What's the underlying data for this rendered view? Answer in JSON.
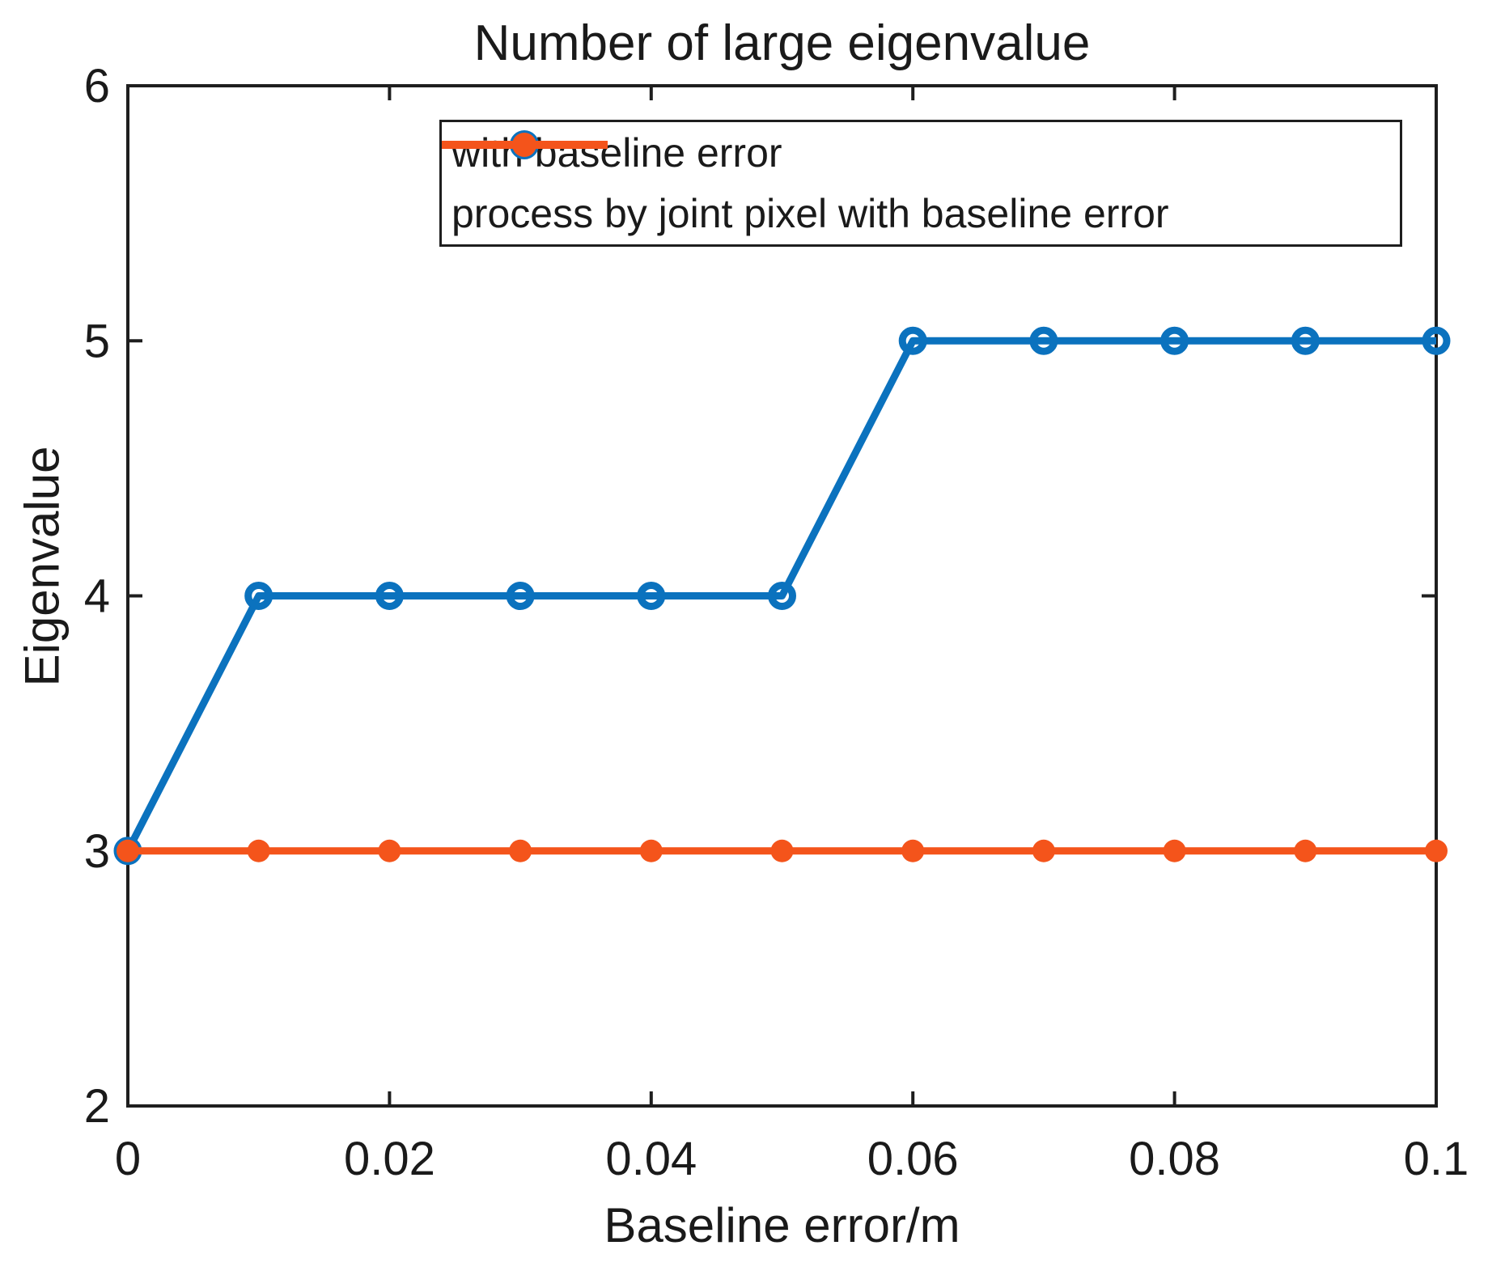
{
  "chart_data": {
    "type": "line",
    "title": "Number of large eigenvalue",
    "xlabel": "Baseline error/m",
    "ylabel": "Eigenvalue",
    "xlim": [
      0,
      0.1
    ],
    "ylim": [
      2,
      6
    ],
    "xticks": [
      0,
      0.02,
      0.04,
      0.06,
      0.08,
      0.1
    ],
    "xtick_labels": [
      "0",
      "0.02",
      "0.04",
      "0.06",
      "0.08",
      "0.1"
    ],
    "yticks": [
      2,
      3,
      4,
      5,
      6
    ],
    "ytick_labels": [
      "2",
      "3",
      "4",
      "5",
      "6"
    ],
    "x": [
      0,
      0.01,
      0.02,
      0.03,
      0.04,
      0.05,
      0.06,
      0.07,
      0.08,
      0.09,
      0.1
    ],
    "series": [
      {
        "name": "with baseline error",
        "color": "#0B72BE",
        "marker": "open-circle",
        "values": [
          3,
          4,
          4,
          4,
          4,
          4,
          5,
          5,
          5,
          5,
          5
        ]
      },
      {
        "name": "process by joint pixel with baseline error",
        "color": "#F4541B",
        "marker": "filled-circle",
        "values": [
          3,
          3,
          3,
          3,
          3,
          3,
          3,
          3,
          3,
          3,
          3
        ]
      }
    ],
    "grid": false,
    "legend_position": "north-inside",
    "axis_color": "#1e1e1e"
  }
}
